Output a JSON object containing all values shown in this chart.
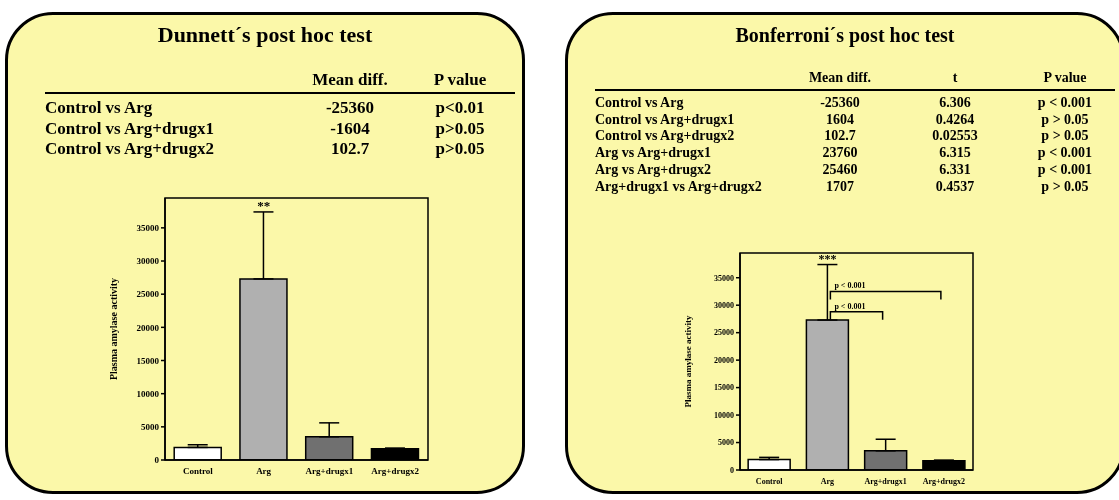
{
  "chart_data": [
    {
      "type": "bar",
      "title": "Dunnett´s post hoc test",
      "ylabel": "Plasma amylase activity",
      "categories": [
        "Control",
        "Arg",
        "Arg+drugx1",
        "Arg+drugx2"
      ],
      "values": [
        1900,
        27300,
        3500,
        1700
      ],
      "errors": [
        400,
        10100,
        2100,
        100
      ],
      "colors": [
        "#ffffff",
        "#b0b0b0",
        "#707070",
        "#000000"
      ],
      "ylim": [
        0,
        39500
      ],
      "yticks": [
        0,
        5000,
        10000,
        15000,
        20000,
        25000,
        30000,
        35000
      ],
      "grid": false,
      "legend": false,
      "annotations": [
        "Mean diff.",
        "P value",
        "Control vs Arg",
        "-25360",
        "p<0.01",
        "Control vs Arg+drugx1",
        "-1604",
        "p>0.05",
        "Control vs Arg+drugx2",
        "102.7",
        "p>0.05",
        {
          "text": "**",
          "x": "Arg",
          "y": 37400
        }
      ]
    },
    {
      "type": "bar",
      "title": "Bonferroni´s post hoc test",
      "ylabel": "Plasma amylase activity",
      "categories": [
        "Control",
        "Arg",
        "Arg+drugx1",
        "Arg+drugx2"
      ],
      "values": [
        1900,
        27300,
        3500,
        1700
      ],
      "errors": [
        400,
        10100,
        2100,
        100
      ],
      "colors": [
        "#ffffff",
        "#b0b0b0",
        "#707070",
        "#000000"
      ],
      "ylim": [
        0,
        39500
      ],
      "yticks": [
        0,
        5000,
        10000,
        15000,
        20000,
        25000,
        30000,
        35000
      ],
      "grid": false,
      "legend": false,
      "annotations": [
        "Mean diff.",
        "t",
        "P value",
        "Control vs Arg",
        "-25360",
        "6.306",
        "p < 0.001",
        "Control vs Arg+drugx1",
        "1604",
        "0.4264",
        "p > 0.05",
        "Control vs Arg+drugx2",
        "102.7",
        "0.02553",
        "p > 0.05",
        "Arg vs Arg+drugx1",
        "23760",
        "6.315",
        "p < 0.001",
        "Arg vs Arg+drugx2",
        "25460",
        "6.331",
        "p < 0.001",
        "Arg+drugx1 vs Arg+drugx2",
        "1707",
        "0.4537",
        "p > 0.05",
        {
          "text": "***",
          "x": "Arg",
          "y": 37400
        },
        {
          "text": "p < 0.001",
          "x": "Arg",
          "y": 28800
        },
        {
          "text": "p < 0.001",
          "x": "Arg",
          "y": 32500
        }
      ]
    }
  ]
}
